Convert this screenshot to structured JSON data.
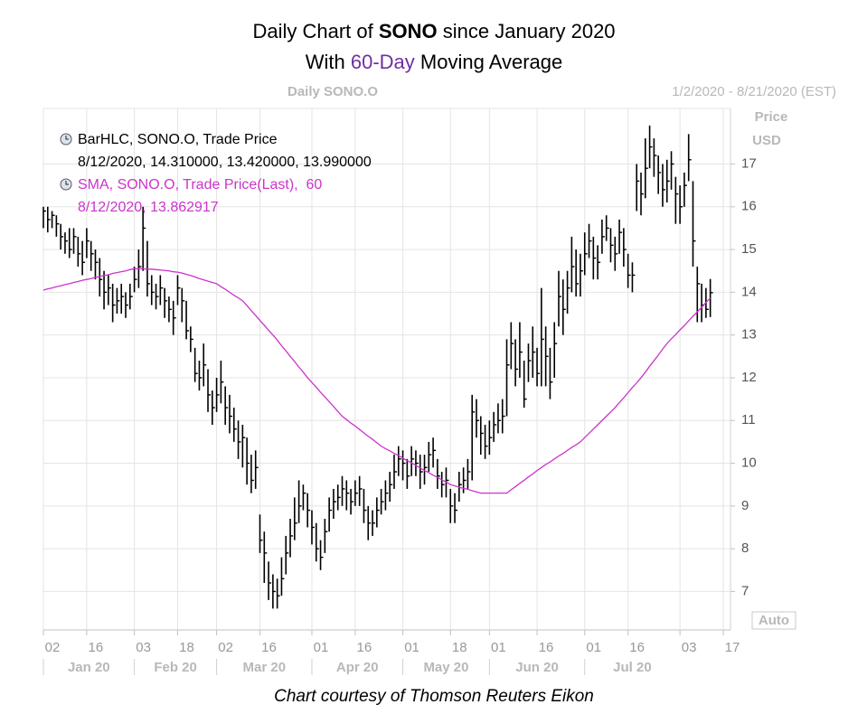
{
  "chart_data": {
    "type": "hlc",
    "title": {
      "line1": [
        "Daily Chart of ",
        "SONO",
        " since January 2020"
      ],
      "line2": [
        "With ",
        "60-Day",
        " Moving Average"
      ]
    },
    "header": "Daily SONO.O",
    "date_range": "1/2/2020 - 8/21/2020 (EST)",
    "y_axis_label": [
      "Price",
      "USD"
    ],
    "scale_button": "Auto",
    "caption": "Chart courtesy of Thomson Reuters Eikon",
    "categories": [
      "2020-01-02",
      "2020-01-03",
      "2020-01-06",
      "2020-01-07",
      "2020-01-08",
      "2020-01-09",
      "2020-01-10",
      "2020-01-13",
      "2020-01-14",
      "2020-01-15",
      "2020-01-16",
      "2020-01-17",
      "2020-01-21",
      "2020-01-22",
      "2020-01-23",
      "2020-01-24",
      "2020-01-27",
      "2020-01-28",
      "2020-01-29",
      "2020-01-30",
      "2020-01-31",
      "2020-02-03",
      "2020-02-04",
      "2020-02-05",
      "2020-02-06",
      "2020-02-07",
      "2020-02-10",
      "2020-02-11",
      "2020-02-12",
      "2020-02-13",
      "2020-02-14",
      "2020-02-18",
      "2020-02-19",
      "2020-02-20",
      "2020-02-21",
      "2020-02-24",
      "2020-02-25",
      "2020-02-26",
      "2020-02-27",
      "2020-02-28",
      "2020-03-02",
      "2020-03-03",
      "2020-03-04",
      "2020-03-05",
      "2020-03-06",
      "2020-03-09",
      "2020-03-10",
      "2020-03-11",
      "2020-03-12",
      "2020-03-13",
      "2020-03-16",
      "2020-03-17",
      "2020-03-18",
      "2020-03-19",
      "2020-03-20",
      "2020-03-23",
      "2020-03-24",
      "2020-03-25",
      "2020-03-26",
      "2020-03-27",
      "2020-03-30",
      "2020-03-31",
      "2020-04-01",
      "2020-04-02",
      "2020-04-03",
      "2020-04-06",
      "2020-04-07",
      "2020-04-08",
      "2020-04-09",
      "2020-04-13",
      "2020-04-14",
      "2020-04-15",
      "2020-04-16",
      "2020-04-17",
      "2020-04-20",
      "2020-04-21",
      "2020-04-22",
      "2020-04-23",
      "2020-04-24",
      "2020-04-27",
      "2020-04-28",
      "2020-04-29",
      "2020-04-30",
      "2020-05-01",
      "2020-05-04",
      "2020-05-05",
      "2020-05-06",
      "2020-05-07",
      "2020-05-08",
      "2020-05-11",
      "2020-05-12",
      "2020-05-13",
      "2020-05-14",
      "2020-05-15",
      "2020-05-18",
      "2020-05-19",
      "2020-05-20",
      "2020-05-21",
      "2020-05-22",
      "2020-05-26",
      "2020-05-27",
      "2020-05-28",
      "2020-05-29",
      "2020-06-01",
      "2020-06-02",
      "2020-06-03",
      "2020-06-04",
      "2020-06-05",
      "2020-06-08",
      "2020-06-09",
      "2020-06-10",
      "2020-06-11",
      "2020-06-12",
      "2020-06-15",
      "2020-06-16",
      "2020-06-17",
      "2020-06-18",
      "2020-06-19",
      "2020-06-22",
      "2020-06-23",
      "2020-06-24",
      "2020-06-25",
      "2020-06-26",
      "2020-06-29",
      "2020-06-30",
      "2020-07-01",
      "2020-07-02",
      "2020-07-06",
      "2020-07-07",
      "2020-07-08",
      "2020-07-09",
      "2020-07-10",
      "2020-07-13",
      "2020-07-14",
      "2020-07-15",
      "2020-07-16",
      "2020-07-17",
      "2020-07-20",
      "2020-07-21",
      "2020-07-22",
      "2020-07-23",
      "2020-07-24",
      "2020-07-27",
      "2020-07-28",
      "2020-07-29",
      "2020-07-30",
      "2020-07-31",
      "2020-08-03",
      "2020-08-04",
      "2020-08-05",
      "2020-08-06",
      "2020-08-07",
      "2020-08-10",
      "2020-08-11",
      "2020-08-12",
      "2020-08-13",
      "2020-08-14",
      "2020-08-17"
    ],
    "series": [
      {
        "name": "BarHLC, SONO.O, Trade Price",
        "detail": "8/12/2020, 14.310000, 13.420000, 13.990000",
        "color": "#000000",
        "high": [
          16.0,
          16.0,
          15.9,
          15.8,
          15.6,
          15.4,
          15.5,
          15.5,
          15.3,
          15.2,
          15.5,
          15.2,
          15.0,
          14.8,
          14.5,
          14.4,
          14.2,
          14.1,
          14.2,
          14.0,
          14.2,
          14.6,
          15.0,
          16.0,
          15.2,
          14.4,
          14.2,
          14.4,
          14.1,
          13.9,
          13.8,
          14.4,
          14.1,
          13.8,
          13.2,
          12.7,
          12.4,
          12.8,
          12.2,
          11.7,
          12.0,
          12.4,
          11.8,
          11.6,
          11.3,
          11.0,
          10.9,
          10.6,
          10.2,
          10.3,
          8.8,
          8.4,
          7.7,
          7.4,
          7.3,
          7.8,
          8.3,
          8.7,
          9.2,
          9.6,
          9.5,
          9.3,
          8.9,
          8.6,
          8.2,
          8.7,
          9.2,
          9.4,
          9.5,
          9.7,
          9.6,
          9.4,
          9.6,
          9.7,
          9.4,
          9.0,
          8.9,
          9.2,
          9.4,
          9.6,
          9.8,
          10.2,
          10.4,
          10.3,
          10.1,
          10.4,
          10.3,
          10.2,
          10.2,
          10.5,
          10.6,
          10.1,
          9.8,
          9.9,
          9.4,
          9.3,
          9.8,
          9.9,
          10.1,
          11.6,
          11.5,
          11.1,
          10.9,
          11.0,
          11.2,
          11.4,
          11.5,
          12.9,
          13.3,
          12.9,
          13.3,
          12.4,
          12.8,
          13.2,
          12.7,
          14.1,
          13.2,
          12.7,
          13.3,
          14.5,
          14.3,
          14.5,
          15.3,
          15.0,
          14.9,
          15.4,
          15.6,
          15.3,
          15.1,
          15.7,
          15.8,
          15.5,
          15.3,
          15.7,
          15.5,
          14.9,
          14.7,
          17.0,
          16.8,
          17.6,
          17.9,
          17.6,
          17.2,
          17.0,
          17.1,
          17.3,
          16.7,
          16.5,
          16.8,
          17.7,
          16.6,
          14.6,
          14.2,
          14.1,
          14.31,
          null,
          null,
          null
        ],
        "low": [
          15.5,
          15.4,
          15.5,
          15.3,
          15.0,
          14.9,
          14.8,
          14.9,
          14.6,
          14.4,
          14.8,
          14.5,
          14.3,
          13.9,
          13.6,
          13.7,
          13.3,
          13.5,
          13.5,
          13.4,
          13.6,
          14.0,
          14.1,
          14.5,
          13.9,
          13.7,
          13.6,
          13.7,
          13.4,
          13.3,
          13.0,
          13.7,
          13.3,
          12.9,
          12.6,
          11.9,
          11.7,
          11.8,
          11.2,
          10.9,
          11.2,
          11.4,
          10.9,
          10.7,
          10.5,
          10.1,
          9.9,
          9.5,
          9.3,
          9.4,
          7.9,
          7.2,
          6.8,
          6.6,
          6.6,
          6.9,
          7.4,
          7.8,
          8.2,
          8.6,
          8.9,
          8.5,
          8.1,
          7.7,
          7.5,
          7.9,
          8.4,
          8.7,
          8.9,
          9.0,
          8.9,
          8.8,
          9.0,
          9.0,
          8.6,
          8.2,
          8.3,
          8.5,
          8.8,
          8.9,
          9.1,
          9.4,
          9.7,
          9.6,
          9.4,
          9.7,
          9.7,
          9.4,
          9.5,
          9.8,
          9.9,
          9.4,
          9.2,
          9.2,
          8.6,
          8.6,
          9.1,
          9.3,
          9.4,
          9.6,
          10.6,
          10.2,
          10.1,
          10.2,
          10.5,
          10.7,
          10.7,
          11.1,
          12.2,
          11.8,
          12.0,
          11.3,
          11.9,
          12.0,
          11.8,
          11.8,
          11.8,
          11.5,
          12.0,
          13.2,
          13.0,
          13.5,
          14.0,
          13.9,
          13.9,
          14.4,
          14.8,
          14.3,
          14.3,
          14.9,
          15.2,
          14.7,
          14.5,
          14.9,
          14.6,
          14.1,
          14.0,
          15.9,
          15.8,
          16.2,
          16.9,
          16.7,
          16.3,
          16.0,
          16.1,
          16.4,
          15.6,
          15.6,
          16.0,
          16.6,
          14.6,
          13.3,
          13.3,
          13.4,
          13.42,
          null,
          null,
          null
        ],
        "close": [
          15.9,
          15.7,
          15.8,
          15.6,
          15.3,
          15.2,
          15.0,
          15.3,
          14.9,
          14.7,
          15.2,
          14.9,
          14.7,
          14.3,
          14.0,
          14.1,
          13.7,
          13.8,
          13.9,
          13.7,
          13.9,
          14.3,
          14.6,
          15.5,
          14.2,
          14.0,
          13.9,
          14.1,
          13.8,
          13.6,
          13.4,
          14.1,
          13.8,
          13.1,
          12.9,
          12.1,
          12.0,
          12.3,
          11.6,
          11.3,
          11.6,
          11.9,
          11.3,
          11.1,
          10.8,
          10.5,
          10.6,
          10.0,
          9.6,
          9.9,
          8.2,
          7.9,
          7.2,
          7.0,
          6.9,
          7.3,
          7.9,
          8.3,
          8.6,
          9.0,
          9.3,
          8.9,
          8.5,
          8.0,
          7.8,
          8.4,
          8.9,
          9.1,
          9.2,
          9.4,
          9.3,
          9.1,
          9.3,
          9.4,
          8.9,
          8.6,
          8.6,
          8.9,
          9.1,
          9.3,
          9.5,
          9.8,
          10.1,
          10.0,
          9.7,
          10.1,
          10.0,
          9.8,
          9.9,
          10.2,
          10.3,
          9.7,
          9.5,
          9.6,
          9.0,
          8.9,
          9.5,
          9.6,
          9.8,
          11.2,
          11.0,
          10.7,
          10.4,
          10.6,
          10.9,
          11.0,
          11.1,
          12.3,
          12.8,
          12.2,
          12.6,
          11.5,
          12.4,
          12.6,
          12.1,
          12.9,
          12.5,
          11.9,
          12.8,
          13.9,
          13.6,
          14.1,
          14.6,
          14.2,
          14.5,
          14.9,
          15.2,
          14.8,
          14.7,
          15.3,
          15.5,
          15.1,
          14.9,
          15.4,
          15.0,
          14.4,
          14.4,
          16.6,
          16.3,
          16.9,
          17.4,
          17.2,
          16.8,
          16.4,
          16.6,
          17.0,
          16.3,
          16.0,
          16.5,
          17.1,
          15.2,
          14.2,
          13.7,
          13.6,
          13.99,
          null,
          null,
          null
        ]
      },
      {
        "name": "SMA, SONO.O, Trade Price(Last),  60",
        "detail": "8/12/2020, 13.862917",
        "color": "#cc33cc",
        "values": [
          14.05,
          14.08,
          14.1,
          14.13,
          14.15,
          14.18,
          14.2,
          14.23,
          14.25,
          14.28,
          14.3,
          14.32,
          14.35,
          14.37,
          14.39,
          14.41,
          14.44,
          14.46,
          14.48,
          14.5,
          14.53,
          14.55,
          14.55,
          14.55,
          14.54,
          14.54,
          14.53,
          14.52,
          14.51,
          14.5,
          14.48,
          14.47,
          14.45,
          14.42,
          14.39,
          14.36,
          14.32,
          14.29,
          14.26,
          14.23,
          14.2,
          14.13,
          14.07,
          14.0,
          13.93,
          13.87,
          13.8,
          13.69,
          13.57,
          13.46,
          13.34,
          13.23,
          13.11,
          13.0,
          12.88,
          12.75,
          12.63,
          12.5,
          12.38,
          12.25,
          12.13,
          12.0,
          11.89,
          11.78,
          11.66,
          11.55,
          11.44,
          11.33,
          11.21,
          11.1,
          11.02,
          10.94,
          10.87,
          10.79,
          10.71,
          10.63,
          10.56,
          10.48,
          10.4,
          10.34,
          10.29,
          10.23,
          10.18,
          10.12,
          10.06,
          10.01,
          9.95,
          9.89,
          9.83,
          9.78,
          9.72,
          9.67,
          9.61,
          9.56,
          9.5,
          9.47,
          9.44,
          9.41,
          9.39,
          9.36,
          9.33,
          9.3,
          9.3,
          9.3,
          9.3,
          9.3,
          9.3,
          9.3,
          9.38,
          9.45,
          9.53,
          9.6,
          9.68,
          9.75,
          9.83,
          9.9,
          9.97,
          10.03,
          10.1,
          10.17,
          10.23,
          10.3,
          10.37,
          10.43,
          10.5,
          10.6,
          10.7,
          10.8,
          10.9,
          11.0,
          11.1,
          11.2,
          11.3,
          11.42,
          11.53,
          11.65,
          11.77,
          11.88,
          12.0,
          12.13,
          12.27,
          12.4,
          12.53,
          12.67,
          12.8,
          12.91,
          13.01,
          13.12,
          13.22,
          13.33,
          13.44,
          13.54,
          13.65,
          13.76,
          13.862917,
          null,
          null,
          null
        ]
      }
    ],
    "ylim": [
      6.1,
      18.3
    ],
    "yticks": [
      7,
      8,
      9,
      10,
      11,
      12,
      13,
      14,
      15,
      16,
      17
    ],
    "xticks": [
      {
        "value": "2020-01-02",
        "label": "02"
      },
      {
        "value": "2020-01-16",
        "label": "16"
      },
      {
        "value": "2020-02-03",
        "label": "03"
      },
      {
        "value": "2020-02-18",
        "label": "18"
      },
      {
        "value": "2020-03-02",
        "label": "02"
      },
      {
        "value": "2020-03-16",
        "label": "16"
      },
      {
        "value": "2020-04-01",
        "label": "01"
      },
      {
        "value": "2020-04-16",
        "label": "16"
      },
      {
        "value": "2020-05-01",
        "label": "01"
      },
      {
        "value": "2020-05-18",
        "label": "18"
      },
      {
        "value": "2020-06-01",
        "label": "01"
      },
      {
        "value": "2020-06-16",
        "label": "16"
      },
      {
        "value": "2020-07-01",
        "label": "01"
      },
      {
        "value": "2020-07-16",
        "label": "16"
      },
      {
        "value": "2020-08-03",
        "label": "03"
      },
      {
        "value": "2020-08-17",
        "label": "17"
      }
    ],
    "month_ticks": [
      {
        "value": "2020-01-02",
        "label": "Jan 20"
      },
      {
        "value": "2020-02-03",
        "label": "Feb 20"
      },
      {
        "value": "2020-03-02",
        "label": "Mar 20"
      },
      {
        "value": "2020-04-01",
        "label": "Apr 20"
      },
      {
        "value": "2020-05-01",
        "label": "May 20"
      },
      {
        "value": "2020-06-01",
        "label": "Jun 20"
      },
      {
        "value": "2020-07-01",
        "label": "Jul 20"
      }
    ],
    "grid": true
  }
}
